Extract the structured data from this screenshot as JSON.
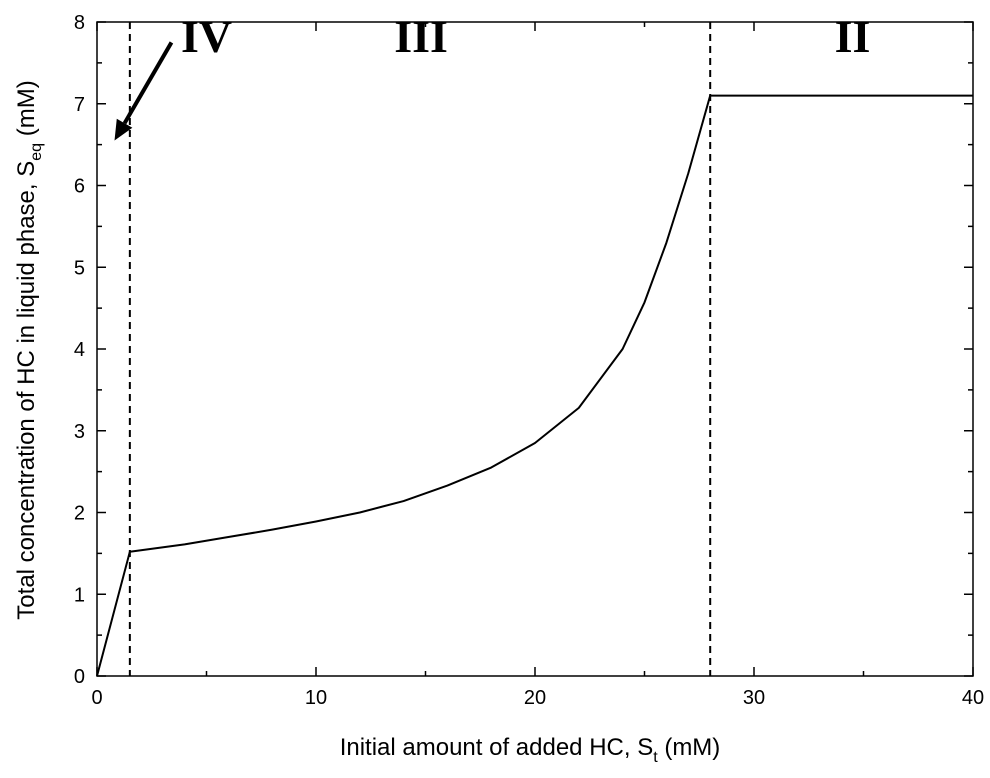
{
  "chart_data": {
    "type": "line",
    "xlabel": "Initial amount of added HC, S",
    "xlabel_sub": "t",
    "xlabel_unit": " (mM)",
    "ylabel": "Total concentration of HC in liquid phase, S",
    "ylabel_sub": "eq",
    "ylabel_unit": " (mM)",
    "xlim": [
      0,
      40
    ],
    "ylim": [
      0,
      8
    ],
    "x_major_ticks": [
      0,
      10,
      20,
      30,
      40
    ],
    "x_tick_labels": [
      "0",
      "10",
      "20",
      "30",
      "40"
    ],
    "y_major_ticks": [
      0,
      1,
      2,
      3,
      4,
      5,
      6,
      7,
      8
    ],
    "y_tick_labels": [
      "0",
      "1",
      "2",
      "3",
      "4",
      "5",
      "6",
      "7",
      "8"
    ],
    "grid": false,
    "legend": "none",
    "series": [
      {
        "x": [
          0,
          1.5,
          4,
          6,
          8,
          10,
          12,
          14,
          16,
          18,
          20,
          22,
          24,
          25,
          26,
          27,
          28,
          29,
          30,
          35,
          40
        ],
        "y": [
          0,
          1.52,
          1.61,
          1.7,
          1.79,
          1.89,
          2.0,
          2.14,
          2.33,
          2.55,
          2.85,
          3.28,
          4.0,
          4.57,
          5.3,
          6.15,
          7.1,
          7.1,
          7.1,
          7.1,
          7.1
        ],
        "color": "#000000"
      }
    ],
    "vlines": [
      1.5,
      28
    ],
    "region_labels": [
      {
        "text": "IV",
        "x": 5
      },
      {
        "text": "III",
        "x": 14.8
      },
      {
        "text": "II",
        "x": 34.5
      }
    ],
    "arrow_annotation": {
      "from": [
        3.4,
        7.75
      ],
      "to": [
        0.8,
        6.55
      ]
    }
  }
}
